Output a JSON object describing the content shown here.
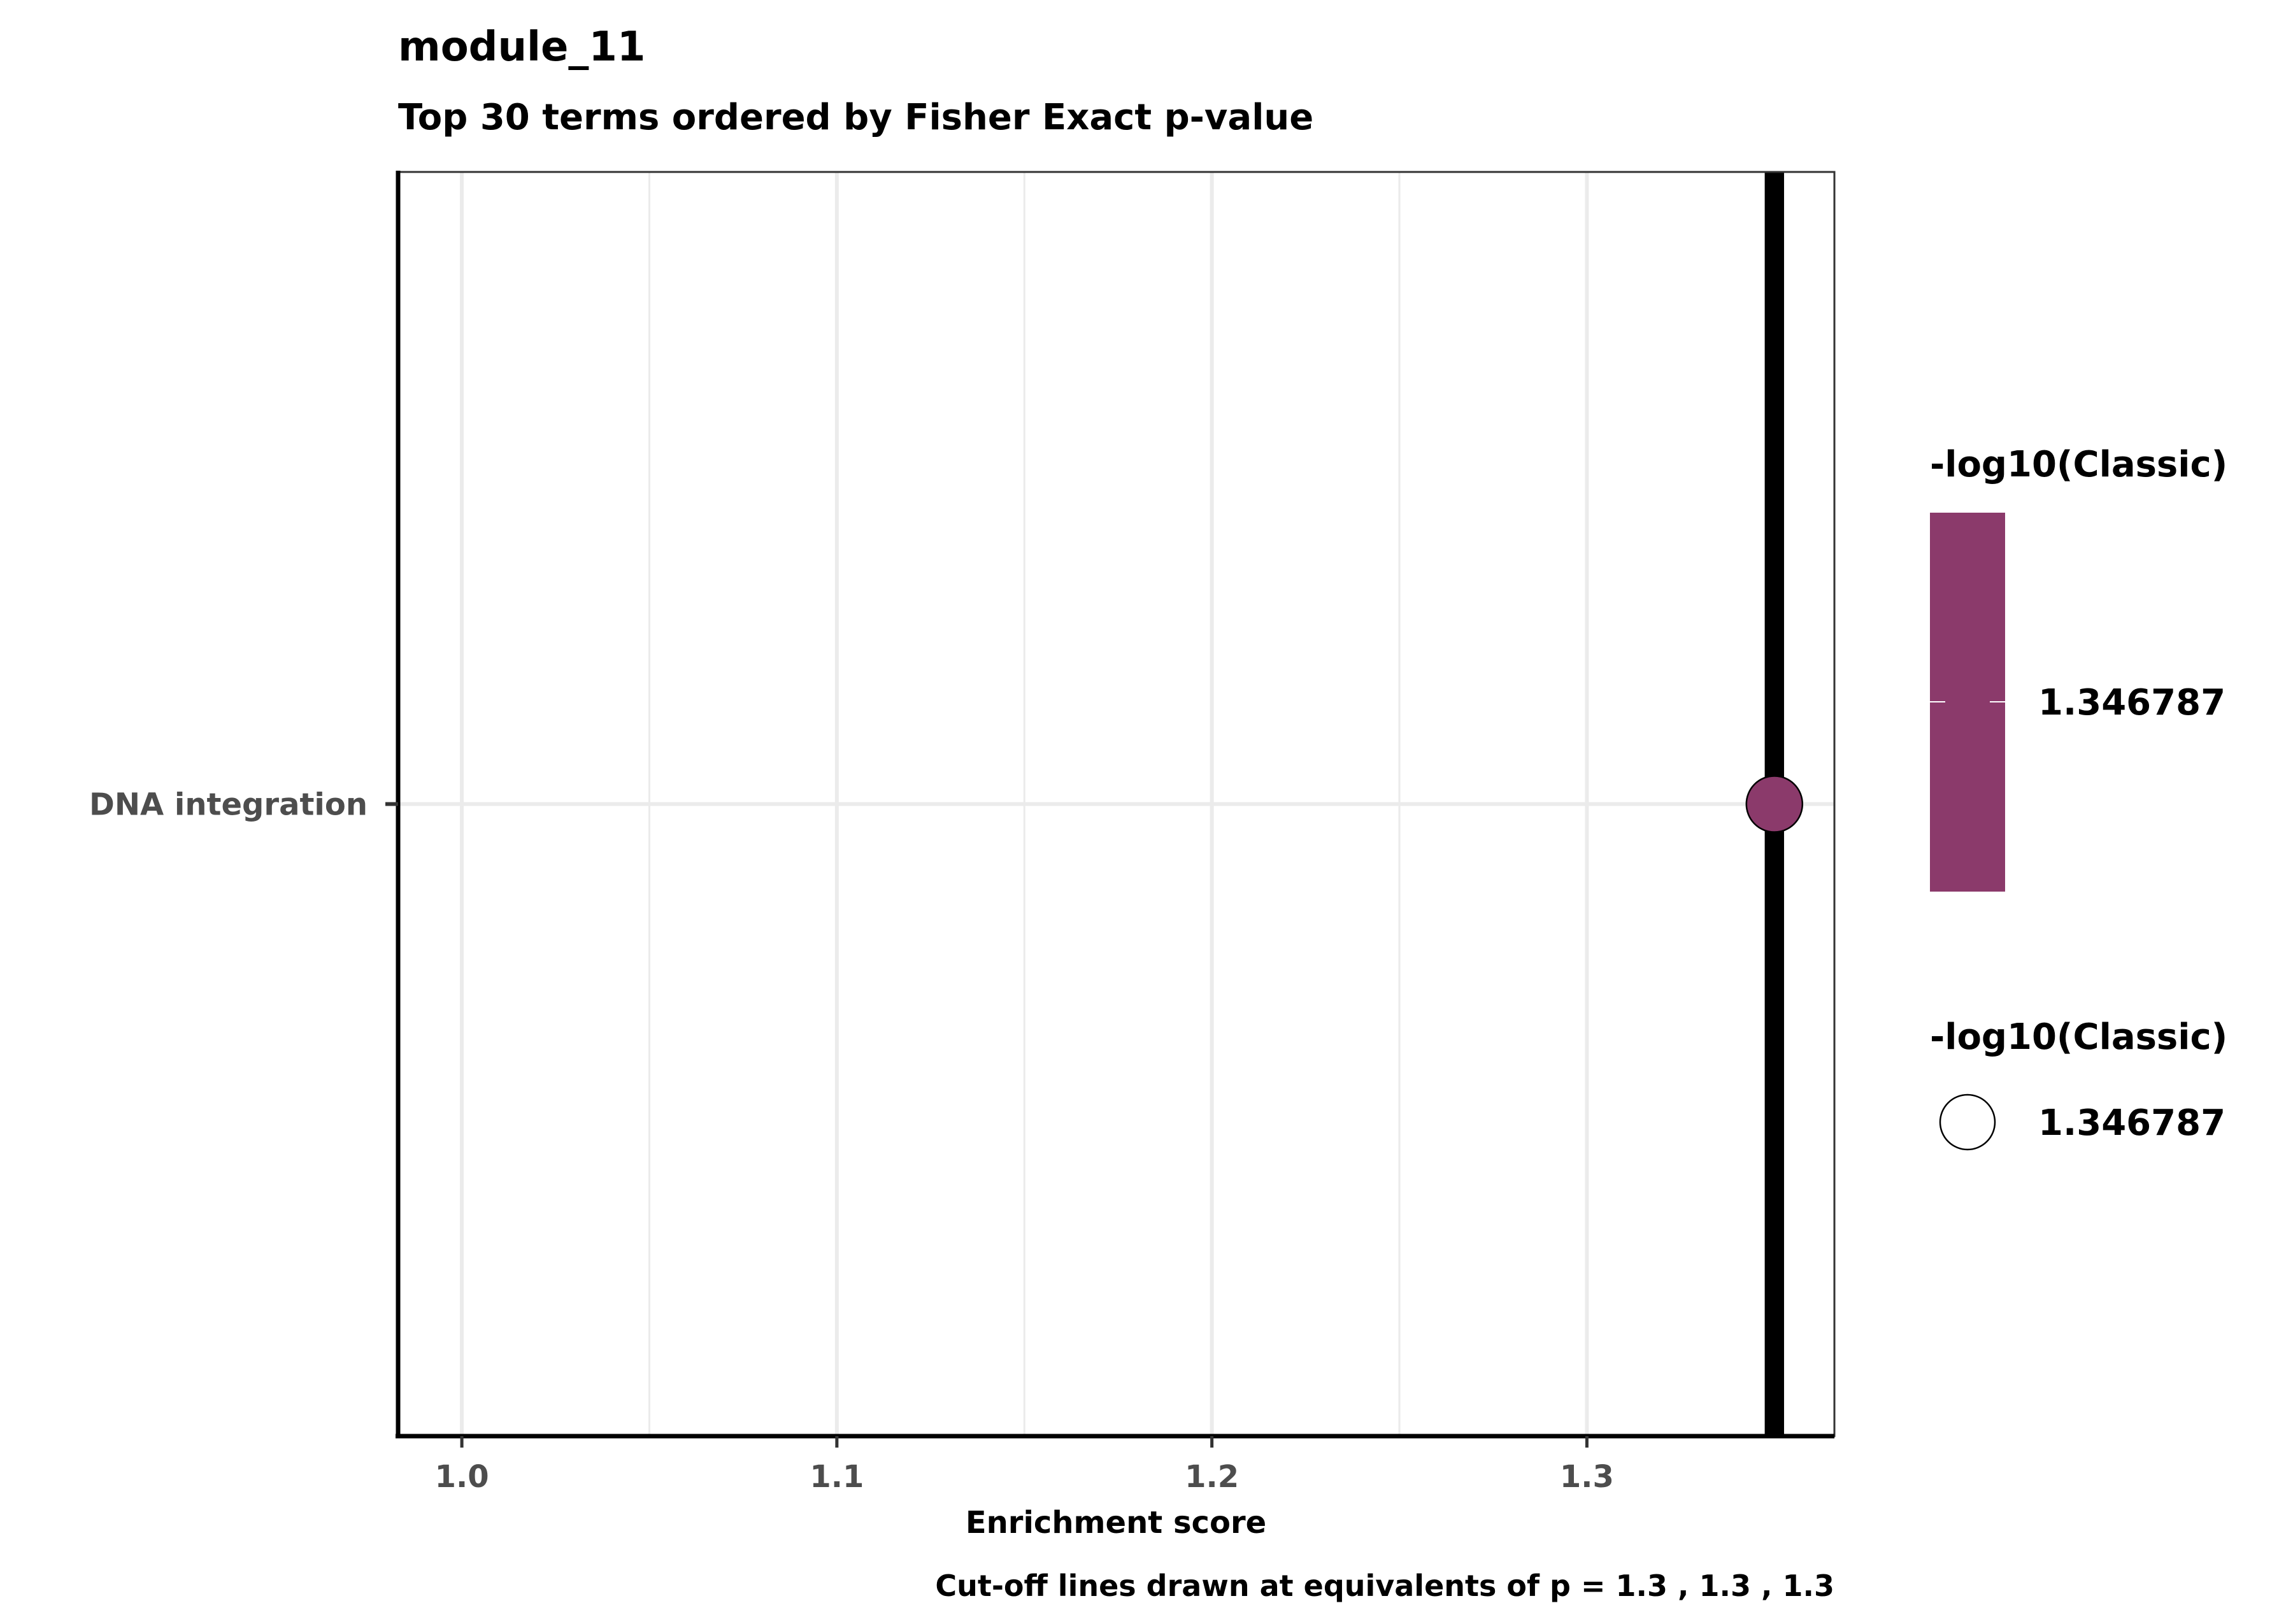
{
  "chart_data": {
    "type": "scatter",
    "title": "module_11",
    "subtitle": "Top 30 terms ordered by Fisher Exact p-value",
    "xlabel": "Enrichment score",
    "ylabel": "",
    "caption": "Cut-off lines drawn at equivalents of p = 1.3 , 1.3 , 1.3",
    "xlim": [
      0.983,
      1.366
    ],
    "x_ticks": [
      1.0,
      1.1,
      1.2,
      1.3
    ],
    "x_tick_labels": [
      "1.0",
      "1.1",
      "1.2",
      "1.3"
    ],
    "categories": [
      "DNA integration"
    ],
    "points": [
      {
        "term": "DNA integration",
        "x": 1.35,
        "neg_log10_classic": 1.346787,
        "color": "#8b3a6b"
      }
    ],
    "cutoff_lines_x": [
      1.35,
      1.35,
      1.35
    ],
    "grid": true,
    "legend_position": "right",
    "legends": [
      {
        "kind": "color",
        "title": "-log10(Classic)",
        "label": "1.346787",
        "color": "#8b3a6b"
      },
      {
        "kind": "size",
        "title": "-log10(Classic)",
        "label": "1.346787"
      }
    ]
  }
}
